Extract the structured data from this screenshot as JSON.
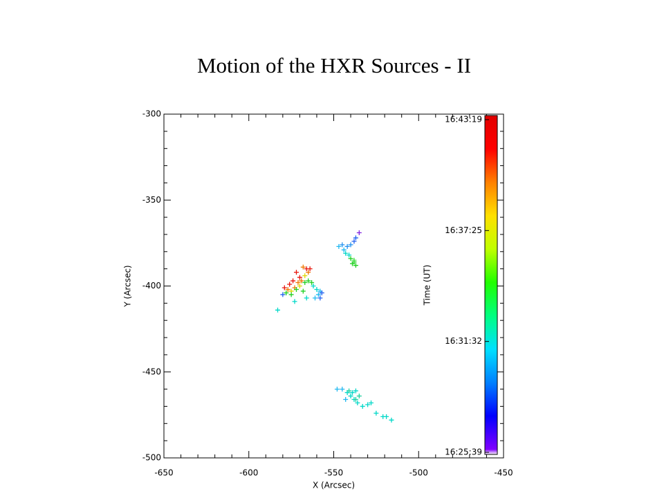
{
  "chart_data": {
    "type": "scatter",
    "title": "Motion of the HXR Sources - II",
    "x_label": "X (Arcsec)",
    "y_label": "Y (Arcsec)",
    "xlim": [
      -650,
      -450
    ],
    "xticks": [
      -650,
      -600,
      -550,
      -500,
      -450
    ],
    "ylim": [
      -500,
      -300
    ],
    "yticks": [
      -500,
      -450,
      -400,
      -350,
      -300
    ],
    "marker": "+",
    "series": [
      {
        "x": [
          -535,
          -537,
          -538,
          -540,
          -542,
          -545,
          -547,
          -544,
          -543,
          -541,
          -540,
          -538,
          -539,
          -537,
          -538,
          -579,
          -576,
          -574,
          -572,
          -570,
          -566,
          -564,
          -568,
          -577,
          -573,
          -571,
          -569,
          -565,
          -575,
          -570,
          -567,
          -578,
          -575,
          -572,
          -567,
          -565,
          -563,
          -568,
          -562,
          -560,
          -559,
          -561,
          -558,
          -573,
          -583,
          -566,
          -580,
          -558,
          -557,
          -548,
          -545,
          -542,
          -540,
          -538,
          -536,
          -539,
          -543,
          -533,
          -530,
          -528,
          -525,
          -521,
          -519,
          -516,
          -537,
          -541,
          -535,
          -537
        ],
        "y": [
          -369,
          -372,
          -374,
          -376,
          -377,
          -376,
          -377,
          -379,
          -381,
          -382,
          -384,
          -386,
          -387,
          -388,
          -385,
          -401,
          -399,
          -397,
          -392,
          -395,
          -390,
          -390,
          -389,
          -402,
          -401,
          -398,
          -397,
          -392,
          -403,
          -400,
          -394,
          -404,
          -405,
          -402,
          -398,
          -397,
          -398,
          -403,
          -400,
          -402,
          -405,
          -407,
          -403,
          -409,
          -414,
          -407,
          -405,
          -407,
          -404,
          -460,
          -460,
          -462,
          -464,
          -466,
          -468,
          -462,
          -466,
          -470,
          -469,
          -468,
          -474,
          -476,
          -476,
          -478,
          -461,
          -461,
          -464,
          -466
        ],
        "point_colors": [
          "#8020e0",
          "#2060f0",
          "#2060f0",
          "#2090f0",
          "#2090f0",
          "#2090f0",
          "#20b8f0",
          "#20b8f0",
          "#00d8c8",
          "#00d8c8",
          "#20d020",
          "#20d020",
          "#20d020",
          "#20d020",
          "#40e040",
          "#e8140a",
          "#e8140a",
          "#e8140a",
          "#e8140a",
          "#e8140a",
          "#e8140a",
          "#e8140a",
          "#f07800",
          "#f07800",
          "#f07800",
          "#f07800",
          "#f07800",
          "#f07800",
          "#e0d800",
          "#e0d800",
          "#e0d800",
          "#20d020",
          "#20d020",
          "#20d020",
          "#20d020",
          "#20d020",
          "#20d020",
          "#20d020",
          "#00d8c8",
          "#00d8c8",
          "#20b8f0",
          "#20b8f0",
          "#20b8f0",
          "#00d8c8",
          "#00d8c8",
          "#00d8c8",
          "#2060f0",
          "#2060f0",
          "#2060f0",
          "#20b8f0",
          "#20b8f0",
          "#00d8c8",
          "#00d8c8",
          "#00d8c8",
          "#00d8c8",
          "#00d8c8",
          "#20b8f0",
          "#00d8c8",
          "#00d8c8",
          "#00d8c8",
          "#00d8c8",
          "#00d8c8",
          "#00d8c8",
          "#00d8c8",
          "#00d8c8",
          "#20d0a0",
          "#20d0a0",
          "#20d0a0"
        ]
      }
    ],
    "colorbar": {
      "label": "Time (UT)",
      "ticks": [
        "16:25:39",
        "16:31:32",
        "16:37:25",
        "16:43:19"
      ],
      "colors": [
        "#ffffff",
        "#8000ff",
        "#0000ff",
        "#0080ff",
        "#00e0ff",
        "#00ff80",
        "#20ff00",
        "#c0ff00",
        "#ffe000",
        "#ff8000",
        "#ff0000",
        "#e00000"
      ]
    }
  }
}
